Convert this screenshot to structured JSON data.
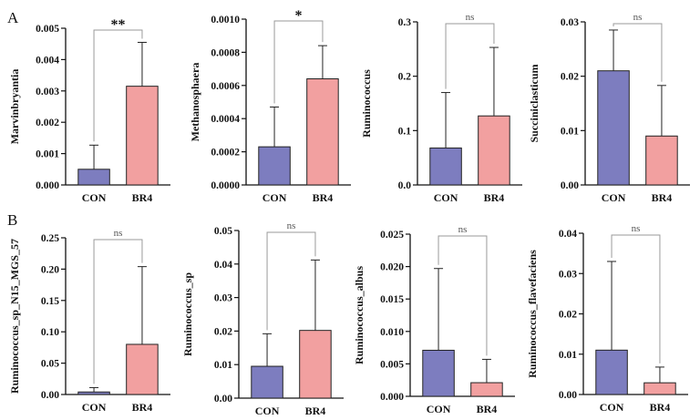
{
  "panel_labels": [
    "A",
    "B"
  ],
  "colors": {
    "con": "#7d7dbf",
    "br4": "#f2a0a0",
    "axis": "#111111",
    "bracket": "#9a9a9a"
  },
  "chart_data": [
    {
      "type": "bar",
      "panel": "A",
      "ylabel": "Marvinbryantia",
      "categories": [
        "CON",
        "BR4"
      ],
      "values": [
        0.0005,
        0.00315
      ],
      "errors": [
        0.00077,
        0.0014
      ],
      "ylim": [
        0,
        0.005
      ],
      "yticks": [
        "0.000",
        "0.001",
        "0.002",
        "0.003",
        "0.004",
        "0.005"
      ],
      "significance": "**"
    },
    {
      "type": "bar",
      "panel": "A",
      "ylabel": "Methanosphaera",
      "categories": [
        "CON",
        "BR4"
      ],
      "values": [
        0.00023,
        0.00064
      ],
      "errors": [
        0.00024,
        0.0002
      ],
      "ylim": [
        0,
        0.001
      ],
      "yticks": [
        "0.0000",
        "0.0002",
        "0.0004",
        "0.0006",
        "0.0008",
        "0.0010"
      ],
      "significance": "*"
    },
    {
      "type": "bar",
      "panel": "A",
      "ylabel": "Ruminococcus",
      "categories": [
        "CON",
        "BR4"
      ],
      "values": [
        0.068,
        0.127
      ],
      "errors": [
        0.102,
        0.126
      ],
      "ylim": [
        0,
        0.3
      ],
      "yticks": [
        "0.0",
        "0.1",
        "0.2",
        "0.3"
      ],
      "significance": "ns"
    },
    {
      "type": "bar",
      "panel": "A",
      "ylabel": "Succiniclasticum",
      "categories": [
        "CON",
        "BR4"
      ],
      "values": [
        0.021,
        0.009
      ],
      "errors": [
        0.0075,
        0.0093
      ],
      "ylim": [
        0,
        0.03
      ],
      "yticks": [
        "0.00",
        "0.01",
        "0.02",
        "0.03"
      ],
      "significance": "ns"
    },
    {
      "type": "bar",
      "panel": "B",
      "ylabel": "Ruminococcus_sp_N15_MGS_57",
      "categories": [
        "CON",
        "BR4"
      ],
      "values": [
        0.004,
        0.08
      ],
      "errors": [
        0.007,
        0.124
      ],
      "ylim": [
        0,
        0.25
      ],
      "yticks": [
        "0.00",
        "0.05",
        "0.10",
        "0.15",
        "0.20",
        "0.25"
      ],
      "significance": "ns"
    },
    {
      "type": "bar",
      "panel": "B",
      "ylabel": "Ruminococcus_sp",
      "categories": [
        "CON",
        "BR4"
      ],
      "values": [
        0.0095,
        0.0202
      ],
      "errors": [
        0.0097,
        0.021
      ],
      "ylim": [
        0,
        0.05
      ],
      "yticks": [
        "0.00",
        "0.01",
        "0.02",
        "0.03",
        "0.04",
        "0.05"
      ],
      "significance": "ns"
    },
    {
      "type": "bar",
      "panel": "B",
      "ylabel": "Ruminococcus_albus",
      "categories": [
        "CON",
        "BR4"
      ],
      "values": [
        0.0071,
        0.0021
      ],
      "errors": [
        0.0126,
        0.0036
      ],
      "ylim": [
        0,
        0.025
      ],
      "yticks": [
        "0.000",
        "0.005",
        "0.010",
        "0.015",
        "0.020",
        "0.025"
      ],
      "significance": "ns"
    },
    {
      "type": "bar",
      "panel": "B",
      "ylabel": "Ruminococcus_flavefaciens",
      "categories": [
        "CON",
        "BR4"
      ],
      "values": [
        0.011,
        0.0029
      ],
      "errors": [
        0.022,
        0.0039
      ],
      "ylim": [
        0,
        0.04
      ],
      "yticks": [
        "0.00",
        "0.01",
        "0.02",
        "0.03",
        "0.04"
      ],
      "significance": "ns"
    }
  ]
}
